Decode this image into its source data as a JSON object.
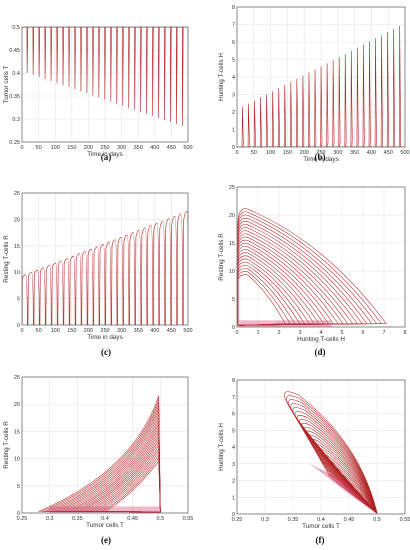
{
  "chart_data": [
    {
      "panel": "(a)",
      "type": "line",
      "xlabel": "Time in days",
      "ylabel": "Tumor cells T",
      "xlim": [
        0,
        500
      ],
      "ylim": [
        0.25,
        0.5
      ],
      "xticks": [
        "0",
        "50",
        "100",
        "150",
        "200",
        "250",
        "300",
        "350",
        "400",
        "450",
        "500"
      ],
      "yticks": [
        "0.25",
        "0.3",
        "0.35",
        "0.4",
        "0.45",
        "0.5"
      ],
      "grid": true,
      "series": [
        {
          "kind": "periodic-spikes",
          "period_days": 18,
          "peak": 0.5,
          "trough_start": 0.4,
          "trough_end": 0.28
        }
      ]
    },
    {
      "panel": "(b)",
      "type": "line",
      "xlabel": "Time in days",
      "ylabel": "Hunting T-cells H",
      "xlim": [
        0,
        500
      ],
      "ylim": [
        0,
        8
      ],
      "xticks": [
        "0",
        "50",
        "100",
        "150",
        "200",
        "250",
        "300",
        "350",
        "400",
        "450",
        "500"
      ],
      "yticks": [
        "0",
        "1",
        "2",
        "3",
        "4",
        "5",
        "6",
        "7",
        "8"
      ],
      "grid": true,
      "series": [
        {
          "kind": "periodic-spikes",
          "period_days": 18,
          "peak_start": 2.3,
          "peak_end": 7.1,
          "trough": 0
        }
      ]
    },
    {
      "panel": "(c)",
      "type": "line",
      "xlabel": "Time in days",
      "ylabel": "Resting T-cells R",
      "xlim": [
        0,
        500
      ],
      "ylim": [
        0,
        25
      ],
      "xticks": [
        "0",
        "50",
        "100",
        "150",
        "200",
        "250",
        "300",
        "350",
        "400",
        "450",
        "500"
      ],
      "yticks": [
        "0",
        "5",
        "10",
        "15",
        "20",
        "25"
      ],
      "grid": true,
      "series": [
        {
          "kind": "periodic-plateaus",
          "period_days": 18,
          "peak_start": 9.5,
          "peak_end": 21.5,
          "trough": 0
        }
      ]
    },
    {
      "panel": "(d)",
      "type": "line",
      "xlabel": "Hunting T-cells H",
      "ylabel": "Resting T-cells R",
      "xlim": [
        0,
        8
      ],
      "ylim": [
        0,
        25
      ],
      "xticks": [
        "0",
        "1",
        "2",
        "3",
        "4",
        "5",
        "6",
        "7",
        "8"
      ],
      "yticks": [
        "0",
        "5",
        "10",
        "15",
        "20",
        "25"
      ],
      "grid": true,
      "series": [
        {
          "kind": "phase-loops",
          "x_max_start": 2.3,
          "x_max_end": 7.1,
          "y_max_start": 9.5,
          "y_max_end": 21.5
        }
      ]
    },
    {
      "panel": "(e)",
      "type": "line",
      "xlabel": "Tumor cells T",
      "ylabel": "Resting T-cells R",
      "xlim": [
        0.25,
        0.55
      ],
      "ylim": [
        0,
        25
      ],
      "xticks": [
        "0.25",
        "0.3",
        "0.35",
        "0.4",
        "0.45",
        "0.5",
        "0.55"
      ],
      "yticks": [
        "0",
        "5",
        "10",
        "15",
        "20",
        "25"
      ],
      "grid": true,
      "series": [
        {
          "kind": "phase-loops",
          "x_min_start": 0.4,
          "x_min_end": 0.28,
          "x_max": 0.5,
          "y_max_start": 9.5,
          "y_max_end": 21.5
        }
      ]
    },
    {
      "panel": "(f)",
      "type": "line",
      "xlabel": "Tumor cells T",
      "ylabel": "Hunting T-cells H",
      "xlim": [
        0.25,
        0.55
      ],
      "ylim": [
        0,
        8
      ],
      "xticks": [
        "0.25",
        "0.3",
        "0.35",
        "0.4",
        "0.45",
        "0.5",
        "0.55"
      ],
      "yticks": [
        "0",
        "1",
        "2",
        "3",
        "4",
        "5",
        "6",
        "7",
        "8"
      ],
      "grid": true,
      "series": [
        {
          "kind": "phase-loops",
          "x_min_start": 0.4,
          "x_min_end": 0.28,
          "x_max": 0.5,
          "y_max_start": 2.3,
          "y_max_end": 7.1
        }
      ]
    }
  ],
  "captions": [
    "(a)",
    "(b)",
    "(c)",
    "(d)",
    "(e)",
    "(f)"
  ],
  "colors": {
    "line": "#b22222",
    "dense": "#d6336c",
    "grid": "#e6e6e6",
    "axis": "#444444"
  }
}
